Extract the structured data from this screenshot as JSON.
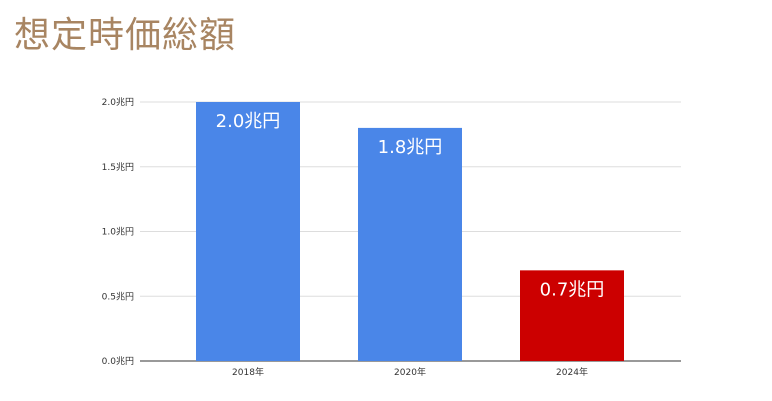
{
  "slide": {
    "title": "想定時価総額"
  },
  "chart_data": {
    "type": "bar",
    "categories": [
      "2018年",
      "2020年",
      "2024年"
    ],
    "values": [
      2.0,
      1.8,
      0.7
    ],
    "data_labels": [
      "2.0兆円",
      "1.8兆円",
      "0.7兆円"
    ],
    "bar_colors": [
      "#4a86e8",
      "#4a86e8",
      "#cc0000"
    ],
    "ylim": [
      0,
      2.0
    ],
    "yticks": [
      0.0,
      0.5,
      1.0,
      1.5,
      2.0
    ],
    "ytick_labels": [
      "0.0兆円",
      "0.5兆円",
      "1.0兆円",
      "1.5兆円",
      "2.0兆円"
    ],
    "grid": true,
    "legend": "none"
  }
}
